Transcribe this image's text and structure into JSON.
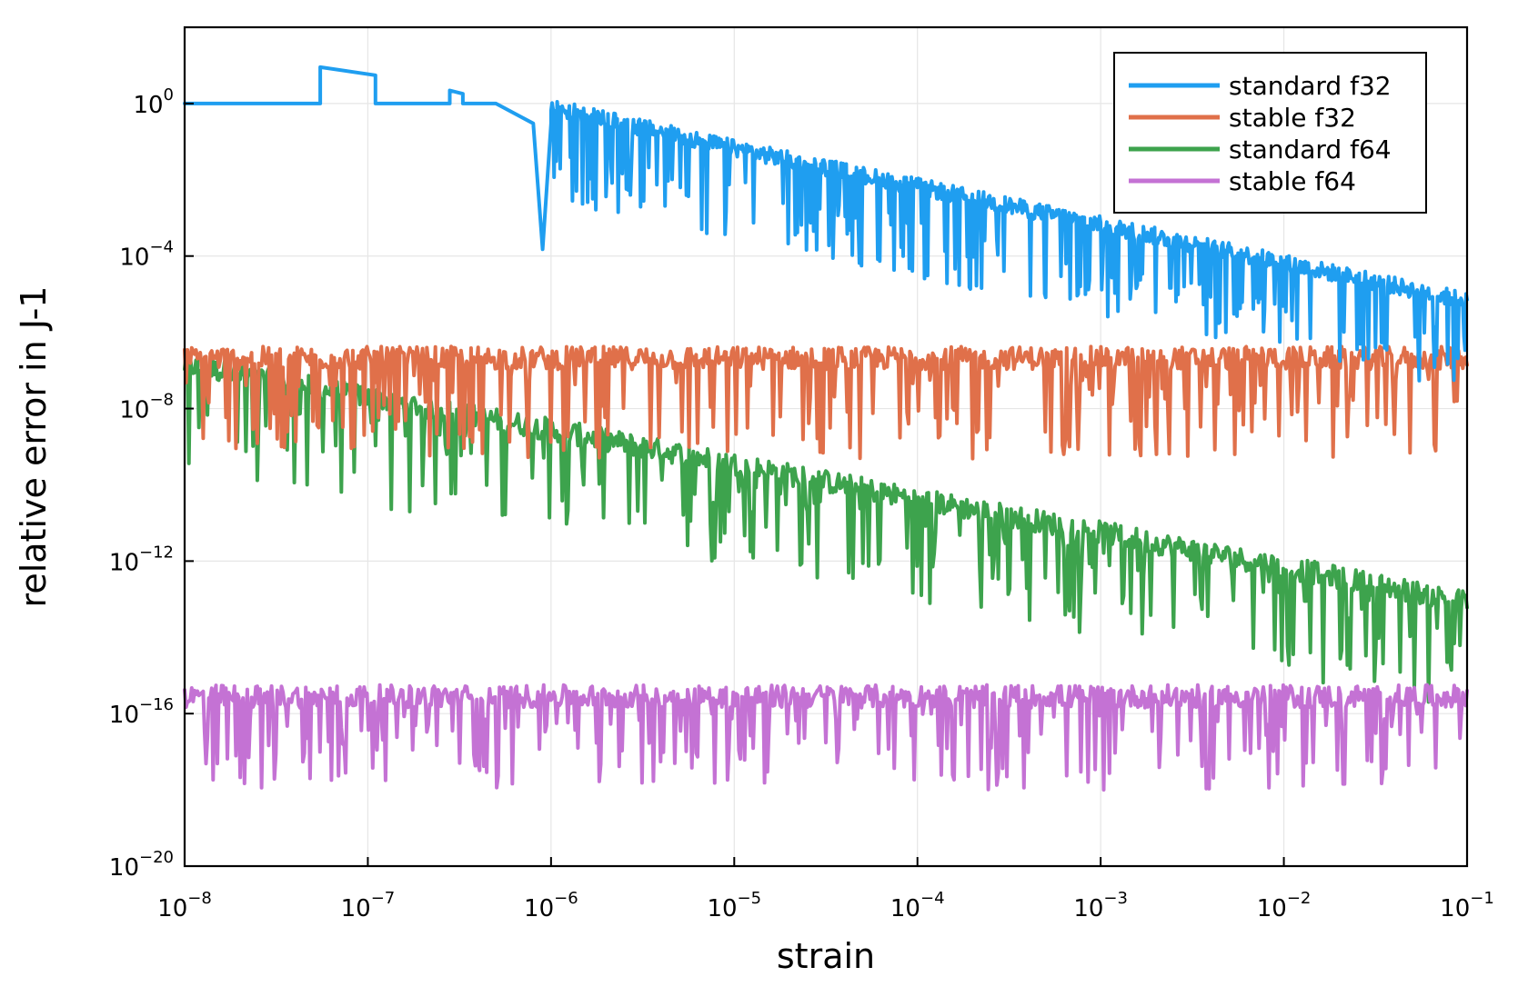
{
  "chart_data": {
    "type": "line",
    "title": "",
    "xlabel": "strain",
    "ylabel": "relative error in J-1",
    "xscale": "log",
    "yscale": "log",
    "xlim": [
      1e-08,
      0.1
    ],
    "ylim": [
      1e-20,
      100
    ],
    "grid": true,
    "legend_position": "top-right",
    "x_ticks": [
      {
        "value": 1e-08,
        "base": "10",
        "exp": "−8"
      },
      {
        "value": 1e-07,
        "base": "10",
        "exp": "−7"
      },
      {
        "value": 1e-06,
        "base": "10",
        "exp": "−6"
      },
      {
        "value": 1e-05,
        "base": "10",
        "exp": "−5"
      },
      {
        "value": 0.0001,
        "base": "10",
        "exp": "−4"
      },
      {
        "value": 0.001,
        "base": "10",
        "exp": "−3"
      },
      {
        "value": 0.01,
        "base": "10",
        "exp": "−2"
      },
      {
        "value": 0.1,
        "base": "10",
        "exp": "−1"
      }
    ],
    "y_ticks": [
      {
        "value": 1,
        "base": "10",
        "exp": "0"
      },
      {
        "value": 0.0001,
        "base": "10",
        "exp": "−4"
      },
      {
        "value": 1e-08,
        "base": "10",
        "exp": "−8"
      },
      {
        "value": 1e-12,
        "base": "10",
        "exp": "−12"
      },
      {
        "value": 1e-16,
        "base": "10",
        "exp": "−16"
      },
      {
        "value": 1e-20,
        "base": "10",
        "exp": "−20"
      }
    ],
    "series": [
      {
        "name": "standard f32",
        "color": "#1f9ef0",
        "description_points": [
          [
            1e-08,
            1
          ],
          [
            5.5e-08,
            1
          ],
          [
            5.5e-08,
            9
          ],
          [
            1.1e-07,
            5.5
          ],
          [
            1.1e-07,
            1
          ],
          [
            2.8e-07,
            1
          ],
          [
            2.8e-07,
            2.2
          ],
          [
            3.3e-07,
            1.8
          ],
          [
            3.3e-07,
            1
          ],
          [
            5e-07,
            1
          ],
          [
            8e-07,
            0.3
          ],
          [
            9e-07,
            0.00015
          ],
          [
            1e-06,
            0.3
          ],
          [
            0.0001,
            0.0015
          ],
          [
            0.001,
            0.00018
          ],
          [
            0.1,
            1.2e-05
          ]
        ],
        "trend": [
          [
            1e-06,
            0.3
          ],
          [
            1e-05,
            0.025
          ],
          [
            0.0001,
            0.0025
          ],
          [
            0.001,
            0.00025
          ],
          [
            0.01,
            2.5e-05
          ],
          [
            0.1,
            2.5e-06
          ]
        ],
        "noise_decades": 1.6
      },
      {
        "name": "stable f32",
        "color": "#e0704a",
        "trend": [
          [
            1e-08,
            1.5e-07
          ],
          [
            0.1,
            1.5e-07
          ]
        ],
        "noise_decades": 2.2
      },
      {
        "name": "standard f64",
        "color": "#3da34d",
        "trend": [
          [
            1e-08,
            1e-07
          ],
          [
            1e-07,
            1.4e-08
          ],
          [
            1e-06,
            2e-09
          ],
          [
            1e-05,
            2.5e-10
          ],
          [
            0.0001,
            3e-11
          ],
          [
            0.001,
            4e-12
          ],
          [
            0.01,
            5e-13
          ],
          [
            0.1,
            6e-14
          ]
        ],
        "noise_decades": 2.4
      },
      {
        "name": "stable f64",
        "color": "#c472d4",
        "trend": [
          [
            1e-08,
            2e-16
          ],
          [
            0.1,
            2e-16
          ]
        ],
        "noise_decades": 2.0
      }
    ]
  }
}
